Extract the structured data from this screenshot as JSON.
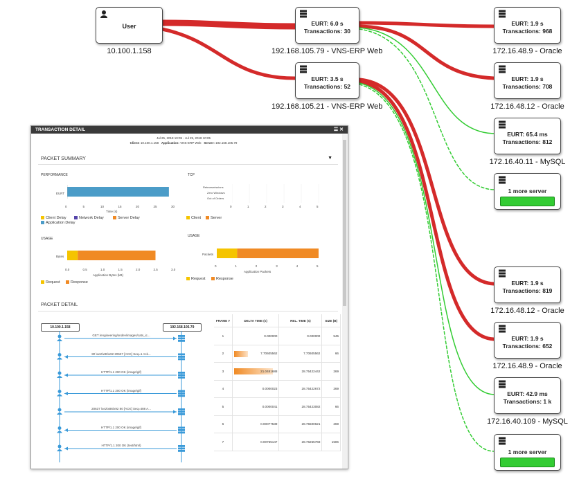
{
  "nodes": {
    "user": {
      "title": "User",
      "ip": "10.100.1.158"
    },
    "web1": {
      "eurt": "EURT: 6.0 s",
      "tx": "Transactions: 30",
      "label": "192.168.105.79 - VNS-ERP Web"
    },
    "web2": {
      "eurt": "EURT: 3.5 s",
      "tx": "Transactions: 52",
      "label": "192.168.105.21 - VNS-ERP Web"
    },
    "right": [
      {
        "eurt": "EURT: 1.9 s",
        "tx": "Transactions: 968",
        "label": "172.16.48.9 - Oracle"
      },
      {
        "eurt": "EURT: 1.9 s",
        "tx": "Transactions: 708",
        "label": "172.16.48.12 - Oracle"
      },
      {
        "eurt": "EURT: 65.4 ms",
        "tx": "Transactions: 812",
        "label": "172.16.40.11 - MySQL"
      },
      {
        "more": "1 more server"
      },
      {
        "eurt": "EURT: 1.9 s",
        "tx": "Transactions: 819",
        "label": "172.16.48.12 - Oracle"
      },
      {
        "eurt": "EURT: 1.9 s",
        "tx": "Transactions: 652",
        "label": "172.16.48.9 - Oracle"
      },
      {
        "eurt": "EURT: 42.9 ms",
        "tx": "Transactions: 1 k",
        "label": "172.16.40.109 - MySQL"
      },
      {
        "more": "1 more server"
      }
    ]
  },
  "colors": {
    "slow_link": "#d42a2a",
    "fast_link": "#33cc33",
    "request": "#f5c400",
    "response": "#f08a24",
    "eurt_bar": "#4b9cc8",
    "network": "#5544aa"
  },
  "panel": {
    "title": "TRANSACTION DETAIL",
    "date_range": "Jul 25, 2018 10:05 - Jul 25, 2018 10:05",
    "client_label": "Client:",
    "client": "10.100.1.158",
    "app_label": "Application:",
    "app": "VNS-ERP Web",
    "server_label": "Server:",
    "server": "192.168.105.79",
    "packet_summary": "PACKET SUMMARY",
    "performance": "PERFORMANCE",
    "eurt_row": "EURT",
    "perf_value_s": 28.8,
    "perf_ticks": [
      "0",
      "5",
      "10",
      "15",
      "20",
      "25",
      "30"
    ],
    "perf_axis": "Time (s)",
    "perf_legend": [
      "Client Delay",
      "Network Delay",
      "Server Delay",
      "Application Delay"
    ],
    "tcp": "TCP",
    "tcp_rows": [
      "Retransmissions",
      "Zero Windows",
      "Out of Orders"
    ],
    "tcp_ticks": [
      "0",
      "1",
      "2",
      "3",
      "4",
      "5"
    ],
    "tcp_legend": [
      "Client",
      "Server"
    ],
    "usage": "USAGE",
    "usage_bytes_row": "Bytes",
    "usage_bytes": {
      "request": 0.3,
      "response": 2.2
    },
    "usage_bytes_ticks": [
      "0.0",
      "0.5",
      "1.0",
      "1.5",
      "2.0",
      "2.5",
      "3.0"
    ],
    "usage_bytes_axis": "Application Bytes (kB)",
    "usage_legend": [
      "Request",
      "Response"
    ],
    "usage_packets_row": "Packets",
    "usage_packets": {
      "request": 1,
      "response": 4
    },
    "usage_packets_ticks": [
      "0",
      "1",
      "2",
      "3",
      "4",
      "5"
    ],
    "usage_packets_axis": "Application Packets",
    "packet_detail": "PACKET DETAIL",
    "seq_left": "10.100.1.158",
    "seq_right": "192.168.105.79",
    "messages": [
      "GET /engineering/sndev/images/cats_ic...",
      "80 \\xe2\\x86\\x92 20637 [ACK] Seq=1 Ack...",
      "HTTP/1.1 200 OK (image/gif)",
      "HTTP/1.1 200 OK (image/gif)",
      "20637 \\xe2\\x86\\x92 80 [ACK] Seq=488 A...",
      "HTTP/1.1 200 OK (image/gif)",
      "HTTP/1.1 200 OK (text/html)"
    ],
    "table_headers": [
      "FRAME #",
      "DELTA TIME (s)",
      "REL. TIME (s)",
      "SIZE (B)"
    ],
    "rows": [
      {
        "frame": "1",
        "delta": "0.000000",
        "rel": "0.000000",
        "size": "545",
        "bar": 0
      },
      {
        "frame": "2",
        "delta": "7.70605562",
        "rel": "7.70605562",
        "size": "66",
        "bar": 0.36
      },
      {
        "frame": "3",
        "delta": "21.0481688",
        "rel": "28.75422442",
        "size": "269",
        "bar": 1.0
      },
      {
        "frame": "4",
        "delta": "0.0000023",
        "rel": "28.75422672",
        "size": "269",
        "bar": 0
      },
      {
        "frame": "5",
        "delta": "0.0000041",
        "rel": "28.75423082",
        "size": "66",
        "bar": 0
      },
      {
        "frame": "6",
        "delta": "0.00077539",
        "rel": "28.75500621",
        "size": "269",
        "bar": 0
      },
      {
        "frame": "7",
        "delta": "0.00755147",
        "rel": "28.76255768",
        "size": "1506",
        "bar": 0
      }
    ]
  }
}
